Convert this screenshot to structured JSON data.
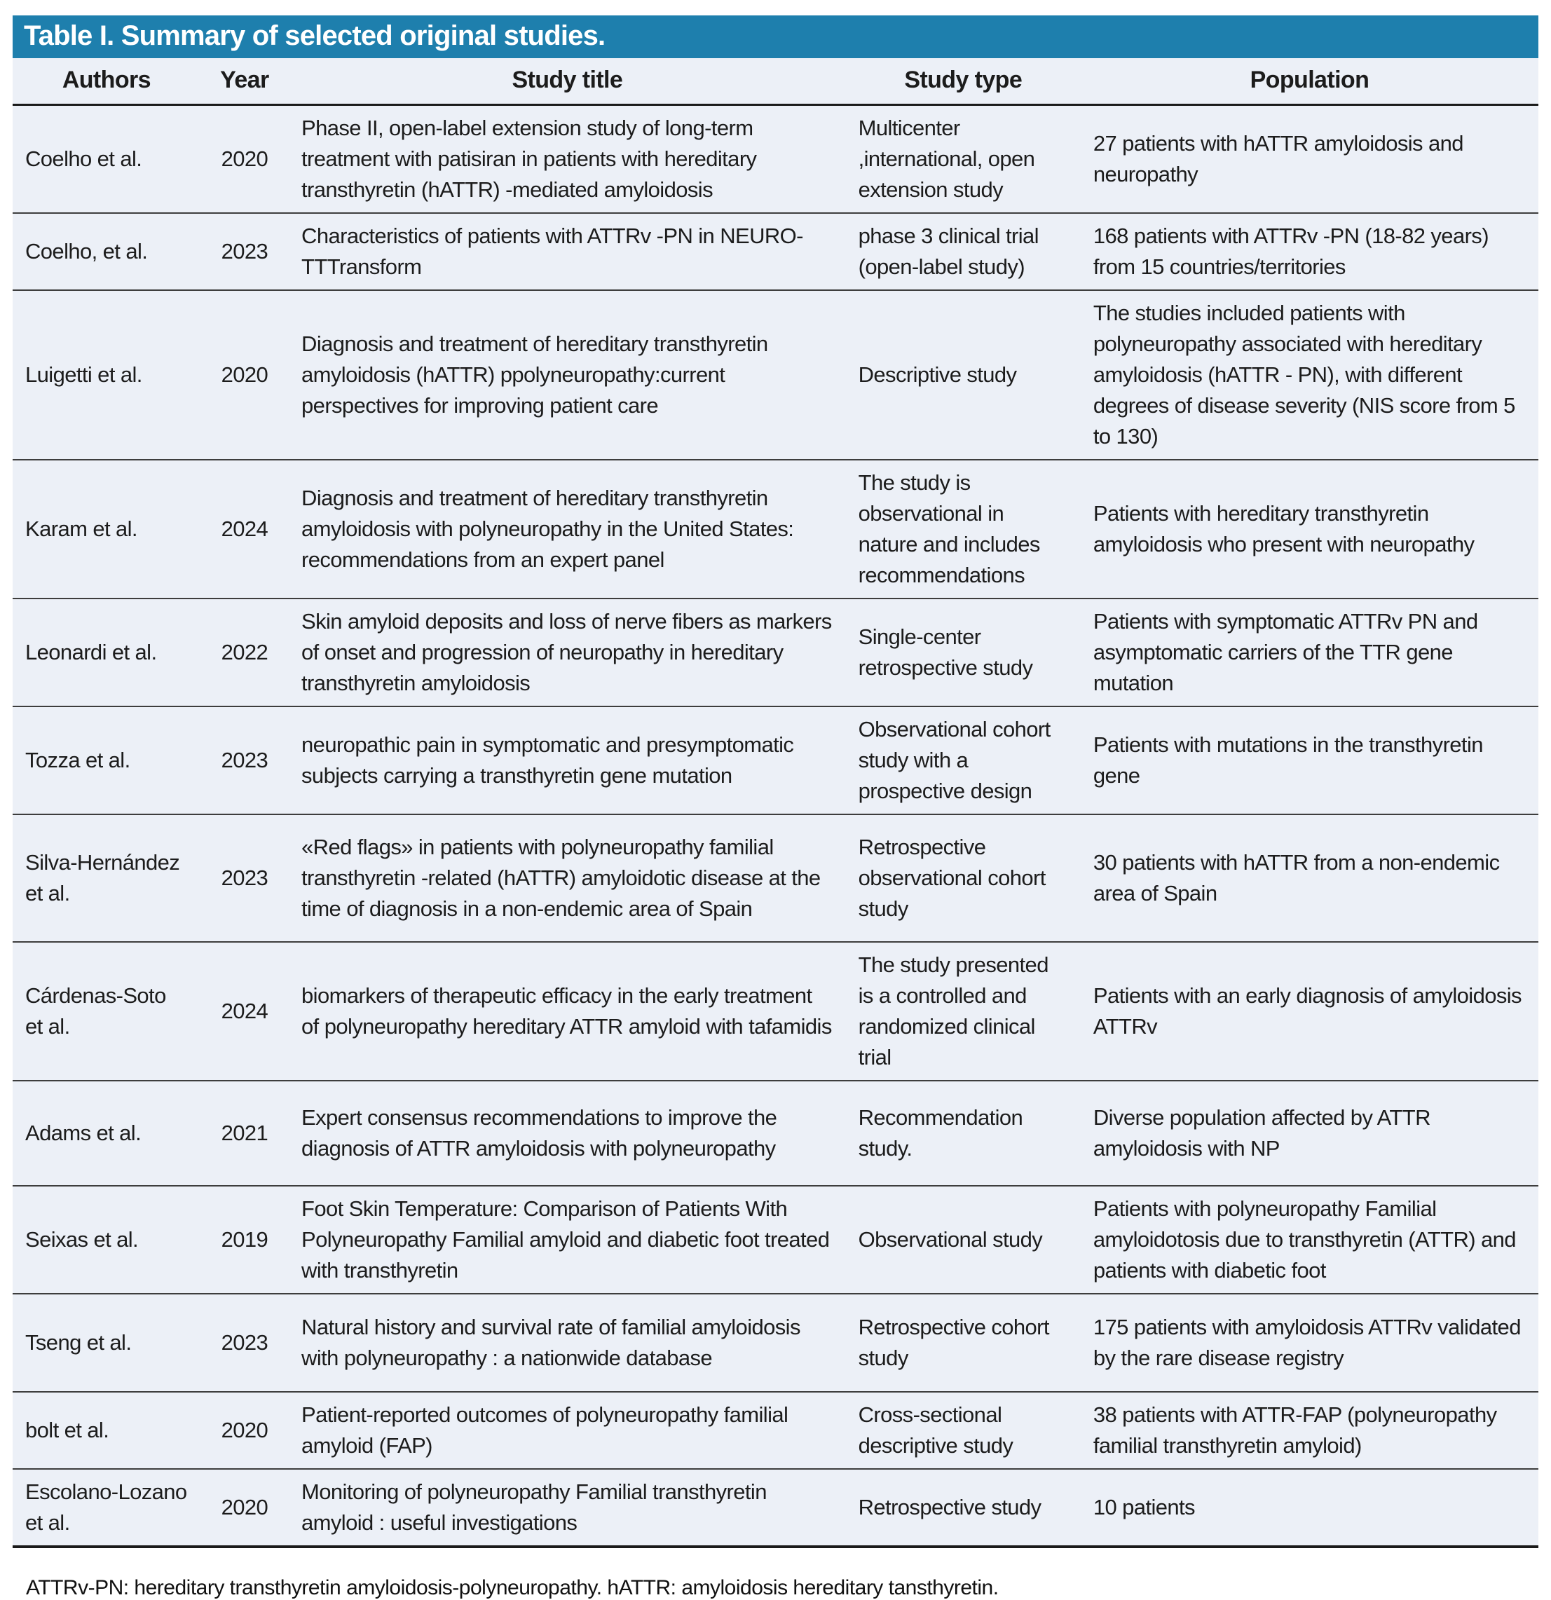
{
  "table": {
    "title": "Table I. Summary of selected original studies.",
    "colors": {
      "title_bar_bg": "#1e7fad",
      "title_bar_text": "#ffffff",
      "row_bg": "#ecf0f7",
      "body_text": "#1c1c1c"
    },
    "columns": [
      "Authors",
      "Year",
      "Study title",
      "Study type",
      "Population"
    ],
    "rows": [
      {
        "authors": "Coelho et al.",
        "year": "2020",
        "title": "Phase II, open-label extension study of long-term treatment with patisiran in patients with hereditary transthyretin (hATTR) -mediated amyloidosis",
        "type": "Multicenter ,international, open extension study",
        "population": "27 patients with hATTR amyloidosis and neuropathy"
      },
      {
        "authors": "Coelho, et al.",
        "year": "2023",
        "title": "Characteristics of patients with ATTRv -PN in NEURO- TTTransform",
        "type": "phase 3 clinical trial (open-label study)",
        "population": "168 patients with ATTRv -PN (18-82 years) from 15 countries/territories"
      },
      {
        "authors": "Luigetti et al.",
        "year": "2020",
        "title": "Diagnosis and treatment of hereditary transthyretin amyloidosis (hATTR) ppolyneuropathy:current perspectives for improving patient care",
        "type": "Descriptive study",
        "population": "The studies included patients with polyneuropathy associated with hereditary amyloidosis (hATTR - PN), with different degrees of disease severity (NIS score from 5 to 130)"
      },
      {
        "authors": "Karam et al.",
        "year": "2024",
        "title": "Diagnosis and treatment of hereditary transthyretin amyloidosis with polyneuropathy in the United States: recommendations from an expert panel",
        "type": "The study is observational in nature and includes recommendations",
        "population": "Patients with hereditary transthyretin amyloidosis who present with neuropathy"
      },
      {
        "authors": "Leonardi et al.",
        "year": "2022",
        "title": "Skin amyloid deposits and loss of nerve fibers as markers of onset and progression of neuropathy in hereditary transthyretin amyloidosis",
        "type": "Single-center retrospective study",
        "population": "Patients with symptomatic ATTRv PN and asymptomatic carriers of the TTR gene mutation"
      },
      {
        "authors": "Tozza et al.",
        "year": "2023",
        "title": "neuropathic pain in symptomatic and presymptomatic subjects carrying a transthyretin gene mutation",
        "type": "Observational cohort study with a prospective design",
        "population": "Patients with mutations in the transthyretin gene"
      },
      {
        "authors": "Silva-Hernández et al.",
        "year": "2023",
        "title": "«Red flags» in patients with polyneuropathy familial transthyretin -related (hATTR) amyloidotic disease at the time of diagnosis in a non-endemic area of Spain",
        "type": "Retrospective observational cohort study",
        "population": "30 patients with hATTR from a non-endemic area of Spain"
      },
      {
        "authors": "Cárdenas-Soto et al.",
        "year": "2024",
        "title": "biomarkers of therapeutic efficacy in the early treatment of polyneuropathy hereditary ATTR amyloid with tafamidis",
        "type": "The study presented is a controlled and randomized clinical trial",
        "population": "Patients with an early diagnosis of amyloidosis ATTRv"
      },
      {
        "authors": "Adams et al.",
        "year": "2021",
        "title": "Expert consensus recommendations to improve the diagnosis of ATTR amyloidosis with polyneuropathy",
        "type": "Recommendation study.",
        "population": "Diverse population affected by ATTR amyloidosis with NP"
      },
      {
        "authors": "Seixas et al.",
        "year": "2019",
        "title": "Foot Skin Temperature: Comparison of Patients With Polyneuropathy Familial amyloid and diabetic foot treated with transthyretin",
        "type": "Observational study",
        "population": "Patients with polyneuropathy Familial amyloidotosis due to transthyretin (ATTR) and patients with diabetic foot"
      },
      {
        "authors": "Tseng et al.",
        "year": "2023",
        "title": "Natural history and survival rate of familial amyloidosis with polyneuropathy : a nationwide database",
        "type": "Retrospective cohort study",
        "population": "175 patients with amyloidosis ATTRv validated by the rare disease registry"
      },
      {
        "authors": "bolt et al.",
        "year": "2020",
        "title": "Patient-reported outcomes of polyneuropathy familial amyloid (FAP)",
        "type": "Cross-sectional descriptive study",
        "population": "38 patients with ATTR-FAP (polyneuropathy familial transthyretin amyloid)"
      },
      {
        "authors": "Escolano-Lozano et al.",
        "year": "2020",
        "title": "Monitoring of polyneuropathy Familial transthyretin amyloid : useful investigations",
        "type": "Retrospective study",
        "population": "10 patients"
      }
    ],
    "footnote": "ATTRv-PN: hereditary transthyretin amyloidosis-polyneuropathy. hATTR: amyloidosis hereditary tansthyretin."
  }
}
